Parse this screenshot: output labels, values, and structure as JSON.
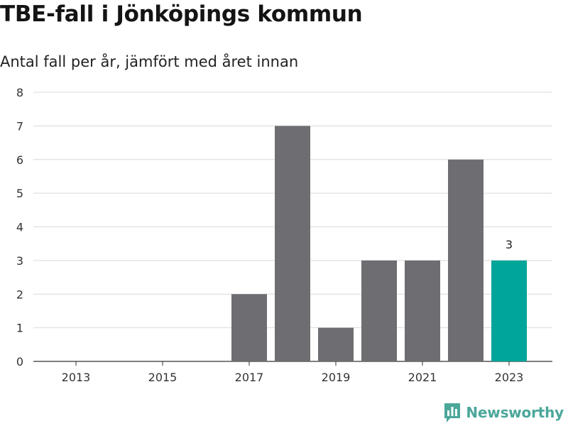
{
  "title": "TBE-fall i Jönköpings kommun",
  "subtitle": "Antal fall per år, jämfört med året innan",
  "brand": {
    "name": "Newsworthy",
    "icon": "newsworthy-logo-icon",
    "color": "#4aa79a"
  },
  "colors": {
    "bar": "#6e6d72",
    "highlight": "#00a59a",
    "grid": "#d9d9d9",
    "axis": "#333333"
  },
  "chart_data": {
    "type": "bar",
    "title": "TBE-fall i Jönköpings kommun",
    "subtitle": "Antal fall per år, jämfört med året innan",
    "categories": [
      "2013",
      "2014",
      "2015",
      "2016",
      "2017",
      "2018",
      "2019",
      "2020",
      "2021",
      "2022",
      "2023"
    ],
    "values": [
      0,
      0,
      0,
      0,
      2,
      7,
      1,
      3,
      3,
      6,
      3
    ],
    "highlight_index": 10,
    "data_labels": [
      {
        "category": "2023",
        "text": "3"
      }
    ],
    "x_tick_labels": [
      "2013",
      "2015",
      "2017",
      "2019",
      "2021",
      "2023"
    ],
    "y_ticks": [
      0,
      1,
      2,
      3,
      4,
      5,
      6,
      7,
      8
    ],
    "ylim": [
      0,
      8
    ],
    "xlabel": "",
    "ylabel": "",
    "grid": "horizontal",
    "legend": "none"
  }
}
